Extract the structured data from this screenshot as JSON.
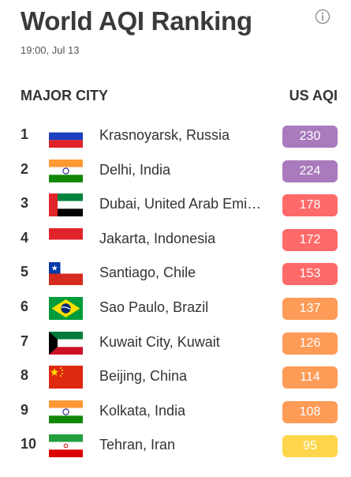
{
  "header": {
    "title": "World AQI Ranking",
    "timestamp": "19:00, Jul 13",
    "info_icon": "info-icon"
  },
  "columns": {
    "city": "MAJOR CITY",
    "aqi": "US AQI"
  },
  "colors": {
    "very_unhealthy": "#a97abc",
    "unhealthy": "#fe6a69",
    "unhealthy_sensitive": "#fe9b57",
    "moderate": "#fdd64b"
  },
  "rows": [
    {
      "rank": "1",
      "city": "Krasnoyarsk, Russia",
      "aqi": "230",
      "flag": "russia",
      "color": "#a97abc"
    },
    {
      "rank": "2",
      "city": "Delhi, India",
      "aqi": "224",
      "flag": "india",
      "color": "#a97abc"
    },
    {
      "rank": "3",
      "city": "Dubai, United Arab Emirates",
      "aqi": "178",
      "flag": "uae",
      "color": "#fe6a69"
    },
    {
      "rank": "4",
      "city": "Jakarta, Indonesia",
      "aqi": "172",
      "flag": "indonesia",
      "color": "#fe6a69"
    },
    {
      "rank": "5",
      "city": "Santiago, Chile",
      "aqi": "153",
      "flag": "chile",
      "color": "#fe6a69"
    },
    {
      "rank": "6",
      "city": "Sao Paulo, Brazil",
      "aqi": "137",
      "flag": "brazil",
      "color": "#fe9b57"
    },
    {
      "rank": "7",
      "city": "Kuwait City, Kuwait",
      "aqi": "126",
      "flag": "kuwait",
      "color": "#fe9b57"
    },
    {
      "rank": "8",
      "city": "Beijing, China",
      "aqi": "114",
      "flag": "china",
      "color": "#fe9b57"
    },
    {
      "rank": "9",
      "city": "Kolkata, India",
      "aqi": "108",
      "flag": "india",
      "color": "#fe9b57"
    },
    {
      "rank": "10",
      "city": "Tehran, Iran",
      "aqi": "95",
      "flag": "iran",
      "color": "#fdd64b"
    }
  ]
}
